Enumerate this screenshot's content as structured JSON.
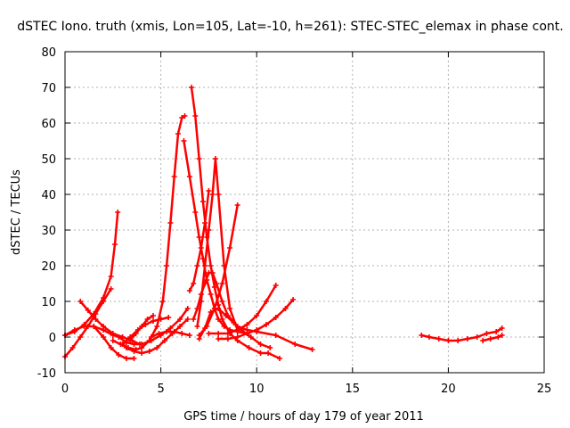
{
  "chart_data": {
    "type": "scatter",
    "title": "dSTEC Iono. truth (xmis, Lon=105, Lat=-10, h=261): STEC-STEC_elemax in phase cont.",
    "xlabel": "GPS time / hours of day 179 of year 2011",
    "ylabel": "dSTEC  / TECUs",
    "xlim": [
      0,
      25
    ],
    "ylim": [
      -10,
      80
    ],
    "xticks": [
      0,
      5,
      10,
      15,
      20,
      25
    ],
    "yticks": [
      -10,
      0,
      10,
      20,
      30,
      40,
      50,
      60,
      70,
      80
    ],
    "grid": true,
    "marker": "plus",
    "color": "#ff0000",
    "series": [
      {
        "x": [
          0.0,
          0.5,
          1.0,
          1.5,
          2.0,
          2.4,
          2.6,
          2.75
        ],
        "y": [
          0.5,
          1.5,
          3.5,
          6.5,
          11,
          17,
          26,
          35
        ]
      },
      {
        "x": [
          0.0,
          0.4,
          0.8,
          1.2,
          1.6,
          2.0,
          2.4
        ],
        "y": [
          -5.5,
          -3,
          0,
          3,
          6.5,
          10,
          13.5
        ]
      },
      {
        "x": [
          0.0,
          0.5,
          1.0,
          1.5,
          2.0,
          2.5,
          3.0
        ],
        "y": [
          0.5,
          2,
          3,
          3,
          2,
          0.5,
          0
        ]
      },
      {
        "x": [
          0.8,
          1.2,
          1.6,
          2.0,
          2.5,
          3.0,
          3.5,
          3.9
        ],
        "y": [
          10,
          7.5,
          5,
          3,
          1,
          0,
          -1,
          -2
        ]
      },
      {
        "x": [
          1.5,
          2.0,
          2.4,
          2.8,
          3.2,
          3.6
        ],
        "y": [
          3,
          0,
          -3,
          -5,
          -6,
          -6
        ]
      },
      {
        "x": [
          2.5,
          2.9,
          3.3,
          3.7,
          4.0,
          4.4,
          4.8,
          5.1,
          5.3,
          5.5,
          5.7,
          5.9,
          6.1,
          6.25
        ],
        "y": [
          -1,
          -2,
          -3,
          -3.5,
          -3,
          -1,
          3,
          10,
          20,
          32,
          45,
          57,
          61.5,
          62
        ]
      },
      {
        "x": [
          2.8,
          3.2,
          3.6,
          4.0,
          4.5,
          5.0,
          5.5,
          6.0,
          6.4
        ],
        "y": [
          0,
          -1.5,
          -2,
          -2,
          -1,
          0.5,
          2.5,
          5,
          8
        ]
      },
      {
        "x": [
          3.0,
          3.4,
          3.8,
          4.2,
          4.6,
          5.0,
          5.4
        ],
        "y": [
          -2,
          0,
          2,
          3.5,
          4.5,
          5,
          5.5
        ]
      },
      {
        "x": [
          3.2,
          3.6,
          4.0,
          4.4,
          4.8,
          5.2,
          5.6,
          6.0,
          6.4
        ],
        "y": [
          -3,
          -4,
          -4.5,
          -4,
          -3,
          -1,
          1,
          3,
          5
        ]
      },
      {
        "x": [
          3.4,
          3.7,
          4.0,
          4.3,
          4.6
        ],
        "y": [
          -1,
          1,
          3,
          5,
          6
        ]
      },
      {
        "x": [
          4.5,
          4.9,
          5.3,
          5.7,
          6.1,
          6.5
        ],
        "y": [
          0,
          1,
          1.5,
          1.5,
          1,
          0.5
        ]
      },
      {
        "x": [
          6.2,
          6.5,
          6.8,
          7.0,
          7.2,
          7.4,
          7.6,
          7.8,
          8.0,
          8.3,
          8.6,
          9.0,
          9.5
        ],
        "y": [
          55,
          45,
          35,
          28,
          22,
          16,
          12,
          8,
          5,
          3,
          2,
          1.5,
          1
        ]
      },
      {
        "x": [
          6.6,
          6.8,
          7.0,
          7.2,
          7.4,
          7.6,
          7.8,
          8.0,
          8.2,
          8.6,
          9.0,
          9.6,
          10.2,
          10.6,
          11.2
        ],
        "y": [
          70,
          62,
          50,
          38,
          28,
          20,
          14,
          9,
          5,
          1,
          -1,
          -3,
          -4.5,
          -4.5,
          -6
        ]
      },
      {
        "x": [
          6.5,
          6.7,
          6.9,
          7.1,
          7.3,
          7.5
        ],
        "y": [
          13,
          15,
          20,
          25,
          32,
          41
        ]
      },
      {
        "x": [
          6.7,
          6.9,
          7.1,
          7.3,
          7.5,
          7.7,
          7.9,
          8.2,
          8.5,
          9.0,
          9.5,
          10.0,
          11.0,
          12.0,
          12.9
        ],
        "y": [
          5,
          8,
          12,
          15,
          18,
          18,
          15,
          10,
          6,
          3,
          2,
          1.5,
          0.5,
          -2,
          -3.5
        ]
      },
      {
        "x": [
          6.9,
          7.1,
          7.3,
          7.5,
          7.7,
          7.85,
          8.0,
          8.3,
          8.6,
          9.0
        ],
        "y": [
          3,
          10,
          20,
          30,
          40,
          50,
          40,
          20,
          8,
          2
        ]
      },
      {
        "x": [
          7.0,
          7.3,
          7.6,
          8.0,
          8.4,
          8.8,
          9.2,
          9.7,
          10.2,
          10.7
        ],
        "y": [
          -0.5,
          2.5,
          7,
          8,
          6,
          4,
          2,
          0,
          -2,
          -3
        ]
      },
      {
        "x": [
          7.0,
          7.4,
          7.8,
          8.2,
          8.6,
          9.0
        ],
        "y": [
          0.5,
          3,
          8,
          15,
          25,
          37
        ]
      },
      {
        "x": [
          7.5,
          8.0,
          8.5,
          9.0,
          9.5,
          10.0,
          10.5,
          11.0
        ],
        "y": [
          1,
          1,
          1,
          2,
          3.5,
          6,
          10,
          14.5
        ]
      },
      {
        "x": [
          8.0,
          8.5,
          9.0,
          9.5,
          10.0,
          10.5,
          11.0,
          11.5,
          11.9
        ],
        "y": [
          -0.5,
          -0.5,
          0,
          1,
          2,
          3.5,
          5.5,
          8,
          10.5
        ]
      },
      {
        "x": [
          18.6,
          19.0,
          19.5,
          20.0,
          20.5,
          21.0,
          21.5,
          22.0,
          22.5,
          22.8
        ],
        "y": [
          0.5,
          0,
          -0.5,
          -1,
          -1,
          -0.5,
          0,
          1,
          1.5,
          2.5
        ]
      },
      {
        "x": [
          21.8,
          22.2,
          22.6,
          22.8
        ],
        "y": [
          -1,
          -0.5,
          0,
          0.5
        ]
      }
    ]
  }
}
